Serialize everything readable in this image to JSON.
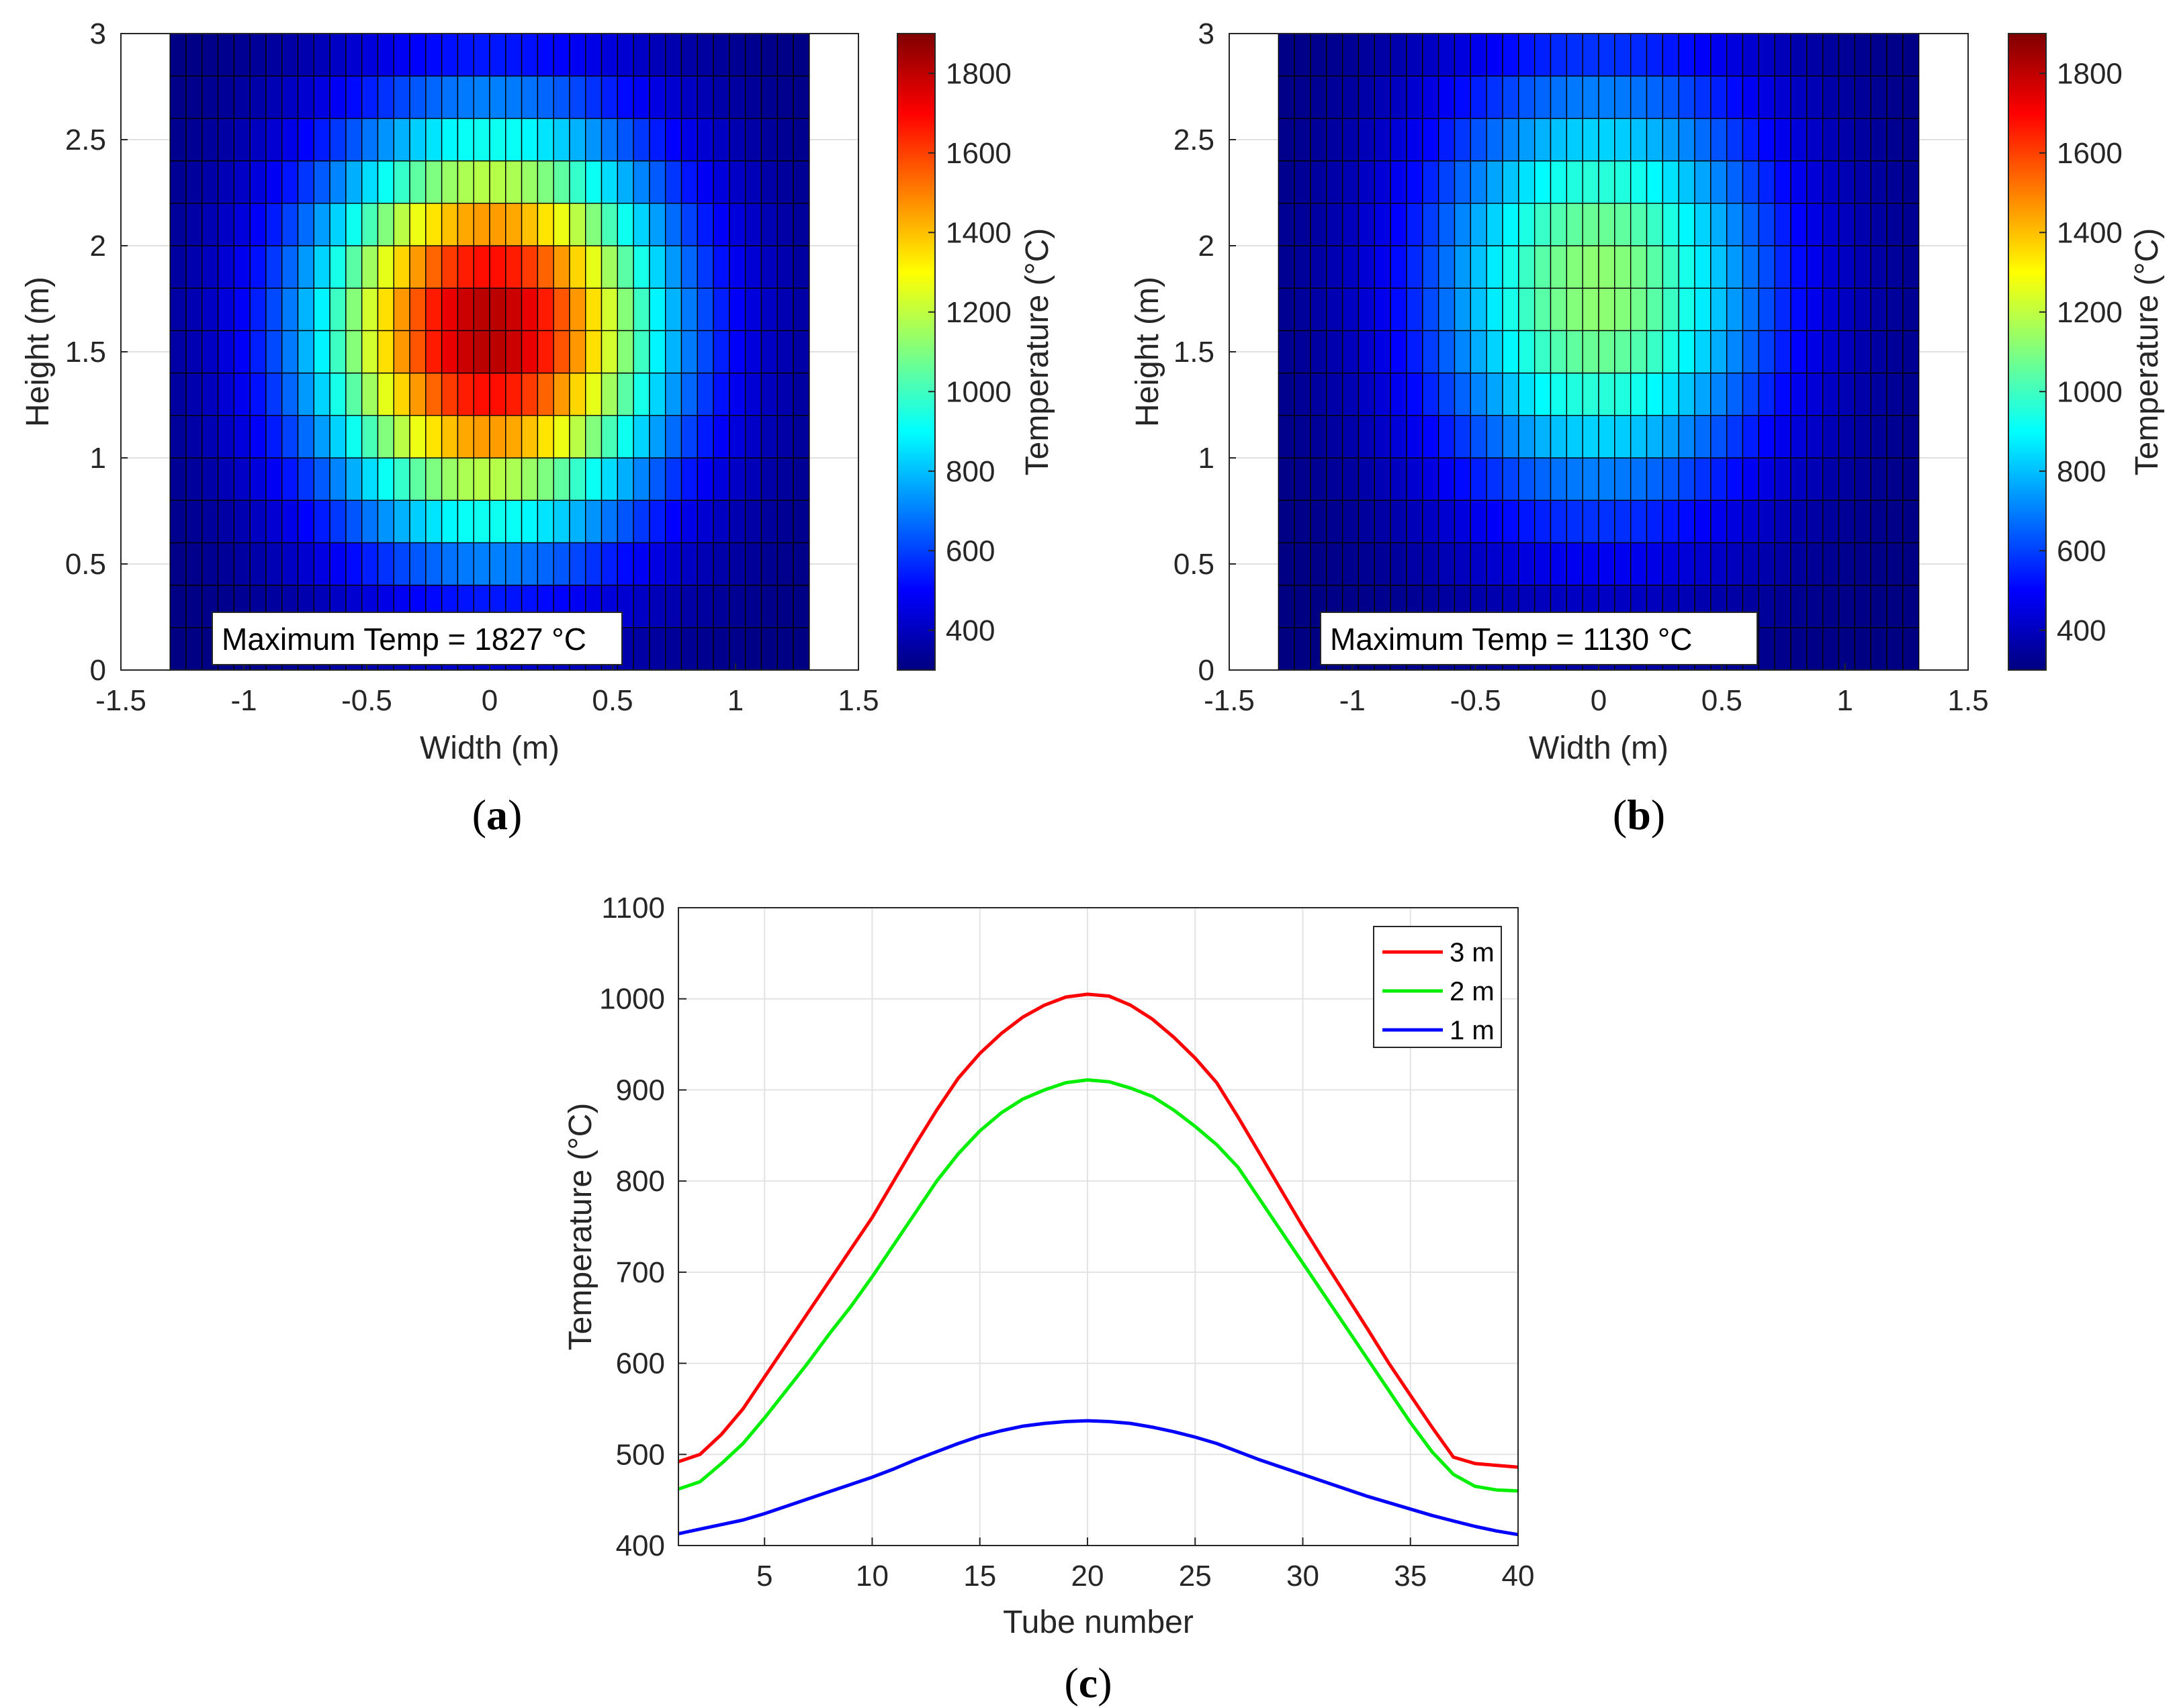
{
  "chart_data": [
    {
      "type": "heatmap",
      "panel_label": "a",
      "xlabel": "Width (m)",
      "ylabel": "Height (m)",
      "xlim": [
        -1.5,
        1.5
      ],
      "ylim": [
        0,
        3
      ],
      "xticks": [
        "-1.5",
        "-1",
        "-0.5",
        "0",
        "0.5",
        "1",
        "1.5"
      ],
      "yticks": [
        "0",
        "0.5",
        "1",
        "1.5",
        "2",
        "2.5",
        "3"
      ],
      "cells_x": 40,
      "cells_y": 15,
      "grid_x_range": [
        -1.3,
        1.3
      ],
      "peak_temp": 1827,
      "peak_location": [
        0,
        1.6
      ],
      "spread_x": 0.7,
      "spread_y": 0.95,
      "base_temp": 300,
      "colorbar": {
        "label": "Temperature (°C)",
        "range": [
          300,
          1900
        ],
        "ticks": [
          "400",
          "600",
          "800",
          "1000",
          "1200",
          "1400",
          "1600",
          "1800"
        ]
      },
      "annotation": "Maximum Temp = 1827 °C"
    },
    {
      "type": "heatmap",
      "panel_label": "b",
      "xlabel": "Width (m)",
      "ylabel": "Height (m)",
      "xlim": [
        -1.5,
        1.5
      ],
      "ylim": [
        0,
        3
      ],
      "xticks": [
        "-1.5",
        "-1",
        "-0.5",
        "0",
        "0.5",
        "1",
        "1.5"
      ],
      "yticks": [
        "0",
        "0.5",
        "1",
        "1.5",
        "2",
        "2.5",
        "3"
      ],
      "cells_x": 40,
      "cells_y": 15,
      "grid_x_range": [
        -1.3,
        1.3
      ],
      "peak_temp": 1130,
      "peak_location": [
        0,
        1.8
      ],
      "spread_x": 0.7,
      "spread_y": 1.05,
      "base_temp": 300,
      "colorbar": {
        "label": "Temperature (°C)",
        "range": [
          300,
          1900
        ],
        "ticks": [
          "400",
          "600",
          "800",
          "1000",
          "1200",
          "1400",
          "1600",
          "1800"
        ]
      },
      "annotation": "Maximum Temp = 1130 °C"
    },
    {
      "type": "line",
      "panel_label": "c",
      "xlabel": "Tube number",
      "ylabel": "Temperature (°C)",
      "xlim": [
        1,
        40
      ],
      "ylim": [
        400,
        1100
      ],
      "xticks": [
        "5",
        "10",
        "15",
        "20",
        "25",
        "30",
        "35",
        "40"
      ],
      "yticks": [
        "400",
        "500",
        "600",
        "700",
        "800",
        "900",
        "1000",
        "1100"
      ],
      "x": [
        1,
        2,
        3,
        4,
        5,
        6,
        7,
        8,
        9,
        10,
        11,
        12,
        13,
        14,
        15,
        16,
        17,
        18,
        19,
        20,
        21,
        22,
        23,
        24,
        25,
        26,
        27,
        28,
        29,
        30,
        31,
        32,
        33,
        34,
        35,
        36,
        37,
        38,
        39,
        40
      ],
      "series": [
        {
          "name": "3 m",
          "color": "#ff0000",
          "values": [
            492,
            500,
            522,
            550,
            585,
            620,
            655,
            690,
            725,
            760,
            800,
            840,
            878,
            913,
            940,
            962,
            980,
            993,
            1002,
            1005,
            1003,
            993,
            978,
            958,
            935,
            908,
            870,
            830,
            790,
            750,
            712,
            675,
            638,
            600,
            565,
            530,
            497,
            490,
            488,
            486
          ]
        },
        {
          "name": "2 m",
          "color": "#00ee00",
          "values": [
            462,
            470,
            490,
            512,
            540,
            570,
            600,
            632,
            662,
            695,
            730,
            765,
            800,
            830,
            855,
            875,
            890,
            900,
            908,
            911,
            909,
            902,
            893,
            878,
            860,
            840,
            815,
            780,
            745,
            710,
            675,
            640,
            605,
            570,
            535,
            503,
            478,
            465,
            461,
            460
          ]
        },
        {
          "name": "1 m",
          "color": "#0000ff",
          "values": [
            413,
            418,
            423,
            428,
            435,
            443,
            451,
            459,
            467,
            475,
            484,
            494,
            503,
            512,
            520,
            526,
            531,
            534,
            536,
            537,
            536,
            534,
            530,
            525,
            519,
            512,
            503,
            494,
            486,
            478,
            470,
            462,
            454,
            447,
            440,
            433,
            427,
            421,
            416,
            412
          ]
        }
      ]
    }
  ]
}
